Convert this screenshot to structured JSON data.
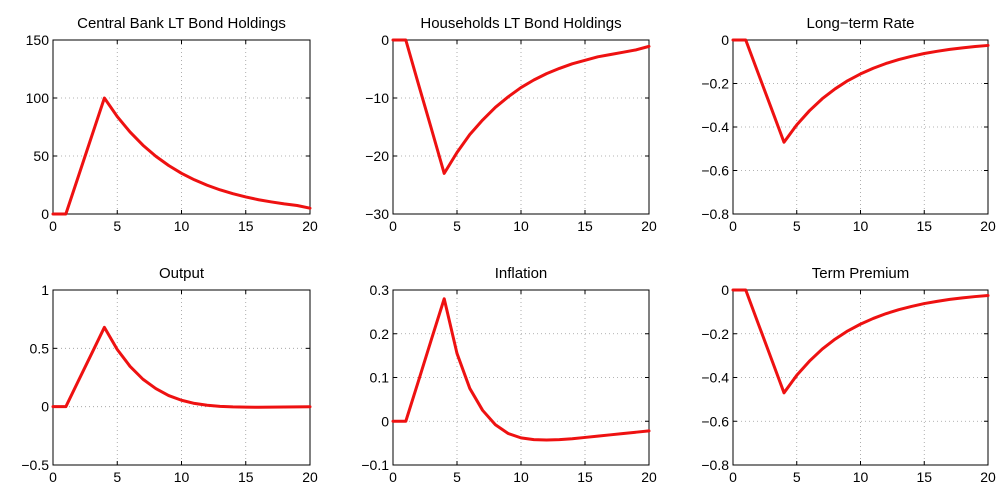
{
  "chart_data": [
    {
      "type": "line",
      "title": "Central Bank LT Bond Holdings",
      "xlabel": "",
      "ylabel": "",
      "xlim": [
        0,
        20
      ],
      "ylim": [
        0,
        150
      ],
      "xticks": [
        0,
        5,
        10,
        15,
        20
      ],
      "yticks": [
        0,
        50,
        100,
        150
      ],
      "xtick_labels": [
        "0",
        "5",
        "10",
        "15",
        "20"
      ],
      "ytick_labels": [
        "0",
        "50",
        "100",
        "150"
      ],
      "grid": true,
      "color": "#ee1111",
      "x": [
        0,
        1,
        2,
        3,
        4,
        5,
        6,
        7,
        8,
        9,
        10,
        11,
        12,
        13,
        14,
        15,
        16,
        17,
        18,
        19,
        20
      ],
      "values": [
        0,
        0,
        33.3,
        66.7,
        100,
        84,
        70.6,
        59.3,
        49.8,
        41.8,
        35.1,
        29.5,
        24.8,
        20.8,
        17.5,
        14.7,
        12.3,
        10.4,
        8.7,
        7.3,
        5
      ]
    },
    {
      "type": "line",
      "title": "Households LT Bond Holdings",
      "xlabel": "",
      "ylabel": "",
      "xlim": [
        0,
        20
      ],
      "ylim": [
        -30,
        0
      ],
      "xticks": [
        0,
        5,
        10,
        15,
        20
      ],
      "yticks": [
        -30,
        -20,
        -10,
        0
      ],
      "xtick_labels": [
        "0",
        "5",
        "10",
        "15",
        "20"
      ],
      "ytick_labels": [
        "−30",
        "−20",
        "−10",
        "0"
      ],
      "grid": true,
      "color": "#ee1111",
      "x": [
        0,
        1,
        2,
        3,
        4,
        5,
        6,
        7,
        8,
        9,
        10,
        11,
        12,
        13,
        14,
        15,
        16,
        17,
        18,
        19,
        20
      ],
      "values": [
        0,
        0,
        -7.7,
        -15.3,
        -23,
        -19.4,
        -16.3,
        -13.8,
        -11.6,
        -9.8,
        -8.2,
        -6.9,
        -5.8,
        -4.9,
        -4.1,
        -3.5,
        -2.9,
        -2.5,
        -2.1,
        -1.7,
        -1.1
      ]
    },
    {
      "type": "line",
      "title": "Long−term Rate",
      "xlabel": "",
      "ylabel": "",
      "xlim": [
        0,
        20
      ],
      "ylim": [
        -0.8,
        0
      ],
      "xticks": [
        0,
        5,
        10,
        15,
        20
      ],
      "yticks": [
        -0.8,
        -0.6,
        -0.4,
        -0.2,
        0
      ],
      "xtick_labels": [
        "0",
        "5",
        "10",
        "15",
        "20"
      ],
      "ytick_labels": [
        "−0.8",
        "−0.6",
        "−0.4",
        "−0.2",
        "0"
      ],
      "grid": true,
      "color": "#ee1111",
      "x": [
        0,
        1,
        2,
        3,
        4,
        5,
        6,
        7,
        8,
        9,
        10,
        11,
        12,
        13,
        14,
        15,
        16,
        17,
        18,
        19,
        20
      ],
      "values": [
        0,
        0,
        -0.157,
        -0.313,
        -0.47,
        -0.39,
        -0.325,
        -0.27,
        -0.225,
        -0.187,
        -0.156,
        -0.13,
        -0.108,
        -0.09,
        -0.075,
        -0.062,
        -0.052,
        -0.043,
        -0.036,
        -0.03,
        -0.025
      ]
    },
    {
      "type": "line",
      "title": "Output",
      "xlabel": "",
      "ylabel": "",
      "xlim": [
        0,
        20
      ],
      "ylim": [
        -0.5,
        1
      ],
      "xticks": [
        0,
        5,
        10,
        15,
        20
      ],
      "yticks": [
        -0.5,
        0,
        0.5,
        1
      ],
      "xtick_labels": [
        "0",
        "5",
        "10",
        "15",
        "20"
      ],
      "ytick_labels": [
        "−0.5",
        "0",
        "0.5",
        "1"
      ],
      "grid": true,
      "color": "#ee1111",
      "x": [
        0,
        1,
        2,
        3,
        4,
        5,
        6,
        7,
        8,
        9,
        10,
        11,
        12,
        13,
        14,
        15,
        16,
        17,
        18,
        19,
        20
      ],
      "values": [
        0,
        0,
        0.227,
        0.453,
        0.68,
        0.49,
        0.345,
        0.235,
        0.155,
        0.095,
        0.055,
        0.028,
        0.012,
        0.003,
        -0.002,
        -0.004,
        -0.005,
        -0.004,
        -0.003,
        -0.002,
        -0.001
      ]
    },
    {
      "type": "line",
      "title": "Inflation",
      "xlabel": "",
      "ylabel": "",
      "xlim": [
        0,
        20
      ],
      "ylim": [
        -0.1,
        0.3
      ],
      "xticks": [
        0,
        5,
        10,
        15,
        20
      ],
      "yticks": [
        -0.1,
        0,
        0.1,
        0.2,
        0.3
      ],
      "xtick_labels": [
        "0",
        "5",
        "10",
        "15",
        "20"
      ],
      "ytick_labels": [
        "−0.1",
        "0",
        "0.1",
        "0.2",
        "0.3"
      ],
      "grid": true,
      "color": "#ee1111",
      "x": [
        0,
        1,
        2,
        3,
        4,
        5,
        6,
        7,
        8,
        9,
        10,
        11,
        12,
        13,
        14,
        15,
        16,
        17,
        18,
        19,
        20
      ],
      "values": [
        0,
        0,
        0.093,
        0.187,
        0.28,
        0.155,
        0.075,
        0.025,
        -0.008,
        -0.028,
        -0.038,
        -0.042,
        -0.043,
        -0.042,
        -0.04,
        -0.037,
        -0.034,
        -0.031,
        -0.028,
        -0.025,
        -0.022
      ]
    },
    {
      "type": "line",
      "title": "Term Premium",
      "xlabel": "",
      "ylabel": "",
      "xlim": [
        0,
        20
      ],
      "ylim": [
        -0.8,
        0
      ],
      "xticks": [
        0,
        5,
        10,
        15,
        20
      ],
      "yticks": [
        -0.8,
        -0.6,
        -0.4,
        -0.2,
        0
      ],
      "xtick_labels": [
        "0",
        "5",
        "10",
        "15",
        "20"
      ],
      "ytick_labels": [
        "−0.8",
        "−0.6",
        "−0.4",
        "−0.2",
        "0"
      ],
      "grid": true,
      "color": "#ee1111",
      "x": [
        0,
        1,
        2,
        3,
        4,
        5,
        6,
        7,
        8,
        9,
        10,
        11,
        12,
        13,
        14,
        15,
        16,
        17,
        18,
        19,
        20
      ],
      "values": [
        0,
        0,
        -0.157,
        -0.313,
        -0.47,
        -0.39,
        -0.325,
        -0.27,
        -0.225,
        -0.187,
        -0.156,
        -0.13,
        -0.108,
        -0.09,
        -0.075,
        -0.062,
        -0.052,
        -0.043,
        -0.036,
        -0.03,
        -0.025
      ]
    }
  ]
}
